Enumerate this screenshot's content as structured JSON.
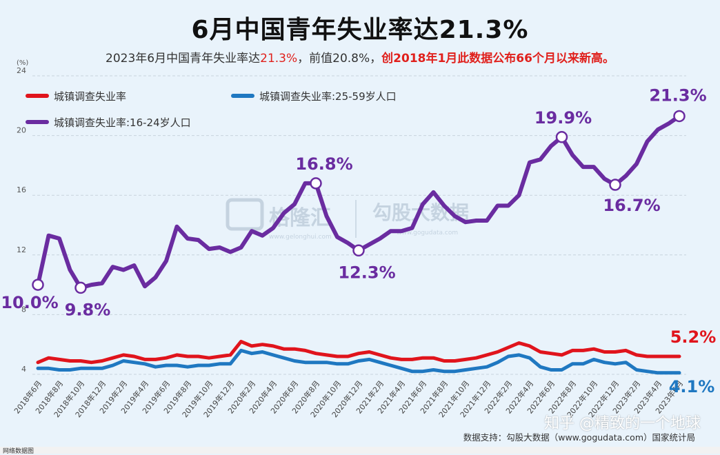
{
  "header": {
    "title": "6月中国青年失业率达21.3%",
    "subtitle_parts": [
      {
        "text": "2023年6月中国青年失业率达",
        "style": "normal"
      },
      {
        "text": "21.3%",
        "style": "red"
      },
      {
        "text": "，前值20.8%，",
        "style": "normal"
      },
      {
        "text": "创2018年1月此数据公布66个月以来新高。",
        "style": "redbold"
      }
    ]
  },
  "watermark": {
    "left": "格隆汇",
    "left_url": "www.gelonghui.com",
    "right": "勾股大数据",
    "right_url": "www.gogudata.com"
  },
  "source": "数据支持：勾股大数据（www.gogudata.com）国家统计局",
  "zhihu_watermark": "知乎 @精致的一个地球",
  "bottom_text": "网络数据图",
  "chart_data": {
    "type": "line",
    "y_unit": "(%)",
    "ylim": [
      4,
      24
    ],
    "yticks": [
      4,
      8,
      12,
      16,
      20,
      24
    ],
    "grid": true,
    "legend_position": "top-left",
    "x_labels": [
      "2018年6月",
      "2018年8月",
      "2018年10月",
      "2018年12月",
      "2019年2月",
      "2019年4月",
      "2019年6月",
      "2019年8月",
      "2019年10月",
      "2019年12月",
      "2020年2月",
      "2020年4月",
      "2020年6月",
      "2020年8月",
      "2020年10月",
      "2020年12月",
      "2021年2月",
      "2021年4月",
      "2021年6月",
      "2021年8月",
      "2021年10月",
      "2021年12月",
      "2022年2月",
      "2022年4月",
      "2022年6月",
      "2022年8月",
      "2022年10月",
      "2022年12月",
      "2023年2月",
      "2023年4月",
      "2023年6月"
    ],
    "series": [
      {
        "name": "城镇调查失业率",
        "color": "#e0141c",
        "values": [
          4.8,
          5.1,
          5.0,
          4.9,
          4.9,
          4.8,
          4.9,
          5.1,
          5.3,
          5.2,
          5.0,
          5.0,
          5.1,
          5.3,
          5.2,
          5.2,
          5.1,
          5.2,
          5.3,
          6.2,
          5.9,
          6.0,
          5.9,
          5.7,
          5.7,
          5.6,
          5.4,
          5.3,
          5.2,
          5.2,
          5.4,
          5.5,
          5.3,
          5.1,
          5.0,
          5.0,
          5.1,
          5.1,
          4.9,
          4.9,
          5.0,
          5.1,
          5.3,
          5.5,
          5.8,
          6.1,
          5.9,
          5.5,
          5.4,
          5.3,
          5.6,
          5.6,
          5.7,
          5.5,
          5.5,
          5.6,
          5.3,
          5.2,
          5.2,
          5.2,
          5.2
        ]
      },
      {
        "name": "城镇调查失业率:25-59岁人口",
        "color": "#1f78c1",
        "values": [
          4.4,
          4.4,
          4.3,
          4.3,
          4.4,
          4.4,
          4.4,
          4.6,
          4.9,
          4.8,
          4.7,
          4.5,
          4.6,
          4.6,
          4.5,
          4.6,
          4.6,
          4.7,
          4.7,
          5.6,
          5.4,
          5.5,
          5.3,
          5.1,
          4.9,
          4.8,
          4.8,
          4.8,
          4.7,
          4.7,
          4.9,
          5.0,
          4.8,
          4.6,
          4.4,
          4.2,
          4.2,
          4.3,
          4.2,
          4.2,
          4.3,
          4.4,
          4.5,
          4.8,
          5.2,
          5.3,
          5.1,
          4.5,
          4.3,
          4.3,
          4.7,
          4.7,
          5.0,
          4.8,
          4.7,
          4.8,
          4.3,
          4.2,
          4.1,
          4.1,
          4.1
        ]
      },
      {
        "name": "城镇调查失业率:16-24岁人口",
        "color": "#6a2ca0",
        "values": [
          10.0,
          13.3,
          13.1,
          11.0,
          9.8,
          10.0,
          10.1,
          11.2,
          11.0,
          11.3,
          9.9,
          10.5,
          11.6,
          13.9,
          13.1,
          13.0,
          12.4,
          12.5,
          12.2,
          12.5,
          13.6,
          13.3,
          13.8,
          14.8,
          15.4,
          16.8,
          16.8,
          14.6,
          13.2,
          12.8,
          12.3,
          12.7,
          13.1,
          13.6,
          13.6,
          13.8,
          15.4,
          16.2,
          15.3,
          14.6,
          14.2,
          14.3,
          14.3,
          15.3,
          15.3,
          16.0,
          18.2,
          18.4,
          19.3,
          19.9,
          18.7,
          17.9,
          17.9,
          17.1,
          16.7,
          17.3,
          18.1,
          19.6,
          20.4,
          20.8,
          21.3
        ]
      }
    ],
    "annotations": [
      {
        "series": 2,
        "index": 0,
        "label": "10.0%"
      },
      {
        "series": 2,
        "index": 4,
        "label": "9.8%"
      },
      {
        "series": 2,
        "index": 26,
        "label": "16.8%"
      },
      {
        "series": 2,
        "index": 30,
        "label": "12.3%"
      },
      {
        "series": 2,
        "index": 49,
        "label": "19.9%"
      },
      {
        "series": 2,
        "index": 54,
        "label": "16.7%"
      },
      {
        "series": 2,
        "index": 60,
        "label": "21.3%"
      },
      {
        "series": 0,
        "index": 60,
        "label": "5.2%"
      },
      {
        "series": 1,
        "index": 60,
        "label": "4.1%"
      }
    ]
  }
}
